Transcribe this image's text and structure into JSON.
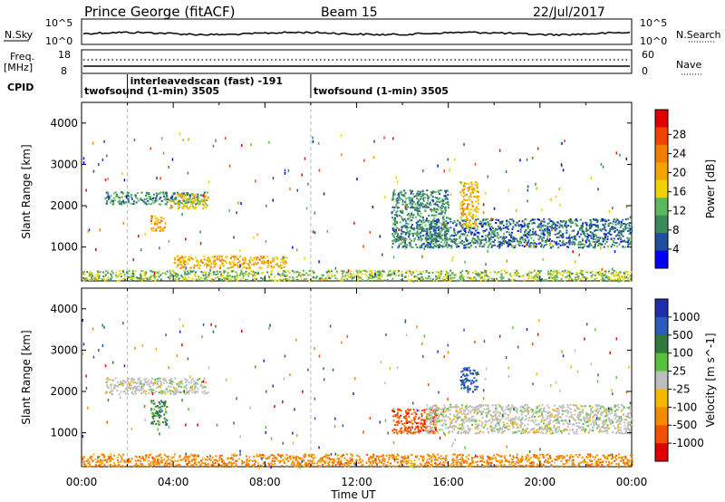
{
  "header": {
    "station": "Prince George (fitACF)",
    "beam": "Beam 15",
    "date": "22/Jul/2017"
  },
  "noise_panel": {
    "left_label": "N.Sky",
    "left_ticks": [
      "10^5",
      "10^0"
    ],
    "right_label": "N.Search",
    "right_ticks": [
      "10^5",
      "10^0"
    ]
  },
  "freq_panel": {
    "left_label_line1": "Freq.",
    "left_label_line2": "[MHz]",
    "left_ticks": [
      "18",
      "8"
    ],
    "right_label": "Nave",
    "right_ticks": [
      "60",
      "0"
    ]
  },
  "cpid": {
    "label": "CPID",
    "segments": [
      {
        "start_hour": 0,
        "text": "twofsound (1-min) 3505"
      },
      {
        "start_hour": 2,
        "text": "interleavedscan (fast) -191"
      },
      {
        "start_hour": 10,
        "text": "twofsound (1-min) 3505"
      }
    ]
  },
  "colors": {
    "power": [
      "#0000ff",
      "#1f4e9e",
      "#3a8a5a",
      "#5cb85c",
      "#f2d200",
      "#f5a300",
      "#f27d00",
      "#f24400",
      "#e00000"
    ],
    "velocity": [
      "#1c2eaa",
      "#2b5bbd",
      "#2f7a3a",
      "#56c23a",
      "#bebebe",
      "#f5b800",
      "#f58a00",
      "#f25000",
      "#e00000"
    ]
  },
  "chart_data": [
    {
      "type": "heatmap",
      "name": "power",
      "xlabel": "",
      "ylabel": "Slant Range [km]",
      "xlim": [
        0,
        24
      ],
      "ylim": [
        180,
        4500
      ],
      "yticks": [
        "1000",
        "2000",
        "3000",
        "4000"
      ],
      "colorbar_label": "Power [dB]",
      "colorbar_ticks": [
        "4",
        "8",
        "12",
        "16",
        "20",
        "24",
        "28"
      ],
      "colorbar_range": [
        0,
        30
      ],
      "features": [
        {
          "desc": "echo band",
          "t": [
            1.0,
            5.5
          ],
          "range": [
            2050,
            2350
          ],
          "value": 8
        },
        {
          "desc": "echo",
          "t": [
            3.8,
            5.5
          ],
          "range": [
            1950,
            2300
          ],
          "value": 16
        },
        {
          "desc": "echo",
          "t": [
            3.0,
            3.6
          ],
          "range": [
            1400,
            1800
          ],
          "value": 20
        },
        {
          "desc": "ground scatter",
          "t": [
            0.0,
            24.0
          ],
          "range": [
            200,
            450
          ],
          "value": 12
        },
        {
          "desc": "echo",
          "t": [
            4.0,
            9.0
          ],
          "range": [
            500,
            800
          ],
          "value": 18
        },
        {
          "desc": "echo band",
          "t": [
            13.5,
            16.0
          ],
          "range": [
            1000,
            2400
          ],
          "value": 8
        },
        {
          "desc": "echo band",
          "t": [
            15.0,
            24.0
          ],
          "range": [
            1000,
            1700
          ],
          "value": 6
        },
        {
          "desc": "echo",
          "t": [
            16.5,
            17.3
          ],
          "range": [
            1500,
            2600
          ],
          "value": 18
        }
      ]
    },
    {
      "type": "heatmap",
      "name": "velocity",
      "xlabel": "Time UT",
      "ylabel": "Slant Range [km]",
      "xlim": [
        0,
        24
      ],
      "ylim": [
        180,
        4500
      ],
      "xticks": [
        "00:00",
        "04:00",
        "08:00",
        "12:00",
        "16:00",
        "20:00",
        "00:00"
      ],
      "yticks": [
        "1000",
        "2000",
        "3000",
        "4000"
      ],
      "colorbar_label": "Velocity [m s^-1]",
      "colorbar_ticks": [
        "1000",
        "500",
        "100",
        "25",
        "-25",
        "-100",
        "-500",
        "-1000"
      ],
      "features": [
        {
          "desc": "echo band",
          "t": [
            1.0,
            5.5
          ],
          "range": [
            1950,
            2350
          ],
          "value": 0
        },
        {
          "desc": "echo",
          "t": [
            3.0,
            3.7
          ],
          "range": [
            1200,
            1800
          ],
          "value": 100
        },
        {
          "desc": "echo",
          "t": [
            0.0,
            24.0
          ],
          "range": [
            200,
            500
          ],
          "value": -100
        },
        {
          "desc": "echo",
          "t": [
            13.5,
            15.5
          ],
          "range": [
            1000,
            1600
          ],
          "value": -500
        },
        {
          "desc": "echo band",
          "t": [
            15.0,
            24.0
          ],
          "range": [
            1000,
            1700
          ],
          "value": 0
        },
        {
          "desc": "echo",
          "t": [
            16.5,
            17.3
          ],
          "range": [
            2000,
            2600
          ],
          "value": 1000
        }
      ]
    }
  ]
}
